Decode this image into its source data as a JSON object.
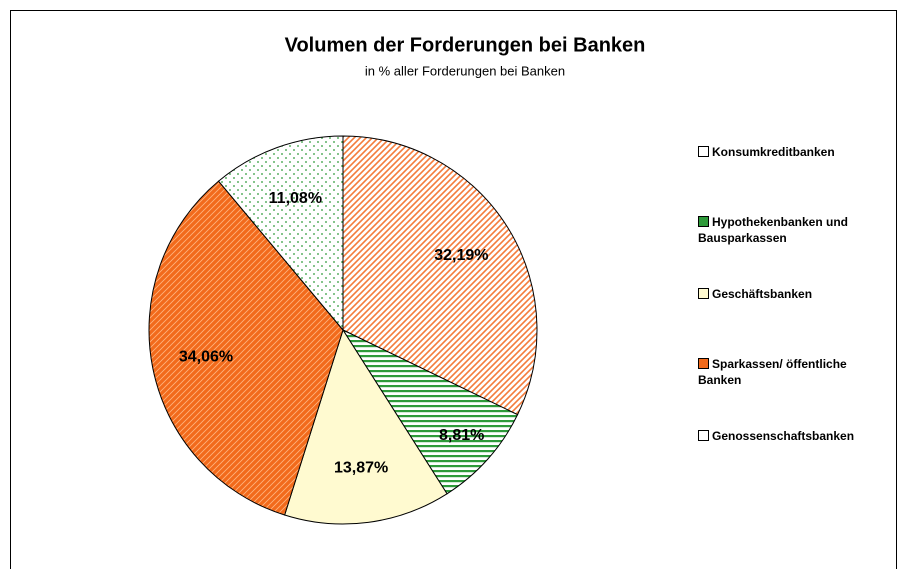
{
  "chart_data": {
    "type": "pie",
    "title": "Volumen der Forderungen bei Banken",
    "subtitle": "in % aller Forderungen bei Banken",
    "categories": [
      "Konsumkreditbanken",
      "Hypothekenbanken und Bausparkassen",
      "Geschäftsbanken",
      "Sparkassen/ öffentliche Banken",
      "Genossenschaftsbanken"
    ],
    "values": [
      32.19,
      8.81,
      13.87,
      34.06,
      11.08
    ],
    "value_labels": [
      "32,19%",
      "8,81%",
      "13,87%",
      "34,06%",
      "11,08%"
    ],
    "colors": [
      "#f47c3c",
      "#2e9a3a",
      "#fffad0",
      "#f26a1b",
      "#2e9a3a"
    ],
    "legend": "right"
  }
}
